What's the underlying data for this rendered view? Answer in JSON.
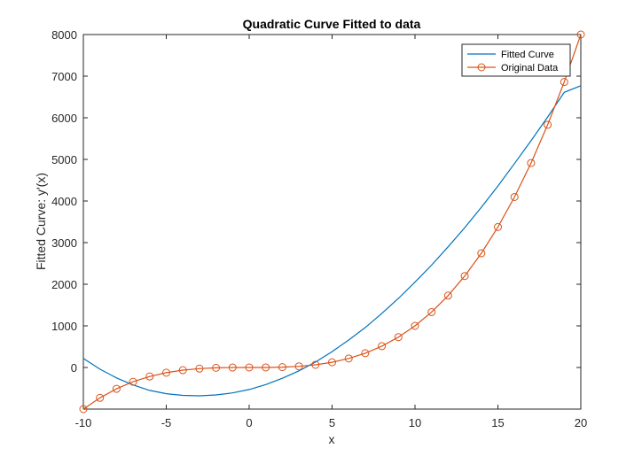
{
  "chart_data": {
    "type": "line",
    "title": "Quadratic Curve Fitted to data",
    "xlabel": "x",
    "ylabel": "Fitted Curve:  y'(x)",
    "xlim": [
      -10,
      20
    ],
    "ylim": [
      -1000,
      8000
    ],
    "xticks": [
      -10,
      -5,
      0,
      5,
      10,
      15,
      20
    ],
    "yticks": [
      0,
      1000,
      2000,
      3000,
      4000,
      5000,
      6000,
      7000,
      8000
    ],
    "grid": false,
    "legend_position": "top-right",
    "series": [
      {
        "name": "Fitted Curve",
        "color": "#0072BD",
        "marker": "none",
        "x": [
          -10,
          -9,
          -8,
          -7,
          -6,
          -5,
          -4,
          -3,
          -2,
          -1,
          0,
          1,
          2,
          3,
          4,
          5,
          6,
          7,
          8,
          9,
          10,
          11,
          12,
          13,
          14,
          15,
          16,
          17,
          18,
          19,
          20
        ],
        "y": [
          220,
          -40,
          -250,
          -420,
          -550,
          -630,
          -670,
          -680,
          -660,
          -610,
          -530,
          -410,
          -260,
          -80,
          130,
          380,
          660,
          960,
          1300,
          1660,
          2050,
          2460,
          2900,
          3360,
          3850,
          4360,
          4900,
          5450,
          6020,
          6610,
          6770
        ]
      },
      {
        "name": "Original Data",
        "color": "#D95319",
        "marker": "circle",
        "x": [
          -10,
          -9,
          -8,
          -7,
          -6,
          -5,
          -4,
          -3,
          -2,
          -1,
          0,
          1,
          2,
          3,
          4,
          5,
          6,
          7,
          8,
          9,
          10,
          11,
          12,
          13,
          14,
          15,
          16,
          17,
          18,
          19,
          20
        ],
        "y": [
          -1000,
          -729,
          -512,
          -343,
          -216,
          -125,
          -64,
          -27,
          -8,
          -1,
          0,
          1,
          8,
          27,
          64,
          125,
          216,
          343,
          512,
          729,
          1000,
          1331,
          1728,
          2197,
          2744,
          3375,
          4096,
          4913,
          5832,
          6859,
          8000
        ]
      }
    ]
  }
}
